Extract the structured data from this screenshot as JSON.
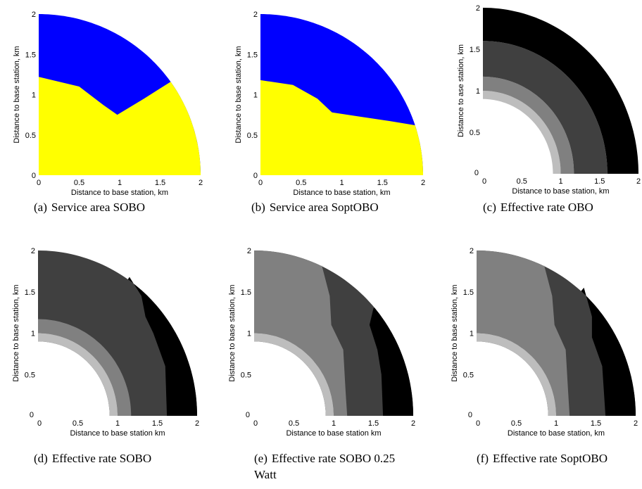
{
  "figure": {
    "captions": [
      [
        "(a)",
        "Service area SOBO"
      ],
      [
        "(b)",
        "Service area SoptOBO"
      ],
      [
        "(c)",
        "Effective rate OBO"
      ],
      [
        "(d)",
        "Effective rate SOBO"
      ],
      [
        "(e)",
        "Effective rate SOBO 0.25",
        "Watt"
      ],
      [
        "(f)",
        "Effective rate SoptOBO"
      ]
    ]
  },
  "chart_data": [
    {
      "type": "heatmap",
      "id": "a",
      "xlabel": "Distance to base station, km",
      "ylabel": "Distance to base station, km",
      "xlim": [
        0,
        2
      ],
      "ylim": [
        0,
        2
      ],
      "xticks": [
        "0",
        "0.5",
        "1",
        "1.5",
        "2"
      ],
      "yticks": [
        "0",
        "0.5",
        "1",
        "1.5",
        "2"
      ],
      "outer_radius_km": 2,
      "regions": [
        {
          "color": "#0000ff",
          "boundary_inner_from": "border"
        },
        {
          "color": "#ffff00",
          "boundary_outer": [
            [
              0,
              1.22
            ],
            [
              0.5,
              1.1
            ],
            [
              0.8,
              0.87
            ],
            [
              0.97,
              0.75
            ],
            [
              1.3,
              0.95
            ],
            [
              1.63,
              1.16
            ]
          ]
        }
      ]
    },
    {
      "type": "heatmap",
      "id": "b",
      "xlabel": "Distance to base station, km",
      "ylabel": "Distance to base station, km",
      "xlim": [
        0,
        2
      ],
      "ylim": [
        0,
        2
      ],
      "xticks": [
        "0",
        "0.5",
        "1",
        "1.5",
        "2"
      ],
      "yticks": [
        "0",
        "0.5",
        "1",
        "1.5",
        "2"
      ],
      "outer_radius_km": 2,
      "regions": [
        {
          "color": "#0000ff"
        },
        {
          "color": "#ffff00",
          "boundary_outer": [
            [
              0,
              1.18
            ],
            [
              0.4,
              1.12
            ],
            [
              0.7,
              0.95
            ],
            [
              0.88,
              0.78
            ],
            [
              1.2,
              0.73
            ],
            [
              1.6,
              0.67
            ],
            [
              1.9,
              0.62
            ]
          ]
        }
      ]
    },
    {
      "type": "heatmap",
      "id": "c",
      "xlabel": "Distance to base station, km",
      "ylabel": "Distance to ase station, km",
      "xlim": [
        0,
        2
      ],
      "ylim": [
        0,
        2
      ],
      "xticks": [
        "0",
        "0.5",
        "1",
        "1.5",
        "2"
      ],
      "yticks": [
        "0",
        "0.5",
        "1",
        "1.5",
        "2"
      ],
      "outer_radius_km": 2,
      "inner_radius_km": 0.9,
      "rings": [
        {
          "r_from": 0.9,
          "r_to": 1.0,
          "color": "#bdbdbd"
        },
        {
          "r_from": 1.0,
          "r_to": 1.17,
          "color": "#808080"
        },
        {
          "r_from": 1.17,
          "r_to": 1.6,
          "color": "#404040"
        },
        {
          "r_from": 1.6,
          "r_to": 2.0,
          "color": "#000000"
        }
      ]
    },
    {
      "type": "heatmap",
      "id": "d",
      "xlabel": "Distance to base station km",
      "ylabel": "Distance to base station, km",
      "xlim": [
        0,
        2
      ],
      "ylim": [
        0,
        2
      ],
      "xticks": [
        "0",
        "0.5",
        "1",
        "1.5",
        "2"
      ],
      "yticks": [
        "0",
        "0.5",
        "1",
        "1.5",
        "2"
      ],
      "outer_radius_km": 2,
      "inner_radius_km": 0.9,
      "rings": [
        {
          "r_from": 0.9,
          "r_to": 1.0,
          "color": "#bdbdbd"
        },
        {
          "r_from": 1.0,
          "r_to": 1.17,
          "color": "#808080"
        },
        {
          "r_from": 1.17,
          "r_to": "black_boundary",
          "color": "#404040"
        }
      ],
      "black_boundary": [
        [
          1.15,
          1.68
        ],
        [
          1.3,
          1.45
        ],
        [
          1.35,
          1.2
        ],
        [
          1.45,
          1.0
        ],
        [
          1.6,
          0.6
        ],
        [
          1.62,
          0
        ]
      ],
      "black_color": "#000000"
    },
    {
      "type": "heatmap",
      "id": "e",
      "xlabel": "Distance to base station km",
      "ylabel": "Distance to base station, km",
      "xlim": [
        0,
        2
      ],
      "ylim": [
        0,
        2
      ],
      "xticks": [
        "0",
        "0.5",
        "1",
        "1.5",
        "2"
      ],
      "yticks": [
        "0",
        "0.5",
        "1",
        "1.5",
        "2"
      ],
      "outer_radius_km": 2,
      "inner_radius_km": 0.9,
      "rings": [
        {
          "r_from": 0.9,
          "r_to": 1.0,
          "color": "#bdbdbd"
        }
      ],
      "mid_boundary": [
        [
          0.85,
          1.82
        ],
        [
          0.95,
          1.45
        ],
        [
          0.97,
          1.1
        ],
        [
          1.12,
          0.8
        ],
        [
          1.15,
          0.3
        ],
        [
          1.17,
          0
        ]
      ],
      "mid_inner_color": "#808080",
      "mid_outer_color": "#404040",
      "black_boundary": [
        [
          1.5,
          1.3
        ],
        [
          1.45,
          1.1
        ],
        [
          1.55,
          0.8
        ],
        [
          1.6,
          0.5
        ],
        [
          1.62,
          0
        ]
      ],
      "black_color": "#000000"
    },
    {
      "type": "heatmap",
      "id": "f",
      "xlabel": "Distance to base station, km",
      "ylabel": "Distance to base station, km",
      "xlim": [
        0,
        2
      ],
      "ylim": [
        0,
        2
      ],
      "xticks": [
        "0",
        "0.5",
        "1",
        "1.5",
        "2"
      ],
      "yticks": [
        "0",
        "0.5",
        "1",
        "1.5",
        "2"
      ],
      "outer_radius_km": 2,
      "inner_radius_km": 0.9,
      "rings": [
        {
          "r_from": 0.9,
          "r_to": 1.0,
          "color": "#bdbdbd"
        }
      ],
      "mid_boundary": [
        [
          0.85,
          1.82
        ],
        [
          0.95,
          1.45
        ],
        [
          0.98,
          1.1
        ],
        [
          1.12,
          0.8
        ],
        [
          1.15,
          0.3
        ],
        [
          1.17,
          0
        ]
      ],
      "mid_inner_color": "#808080",
      "mid_outer_color": "#404040",
      "black_boundary": [
        [
          1.35,
          1.55
        ],
        [
          1.45,
          1.2
        ],
        [
          1.45,
          0.95
        ],
        [
          1.58,
          0.6
        ],
        [
          1.62,
          0
        ]
      ],
      "black_color": "#000000"
    }
  ]
}
